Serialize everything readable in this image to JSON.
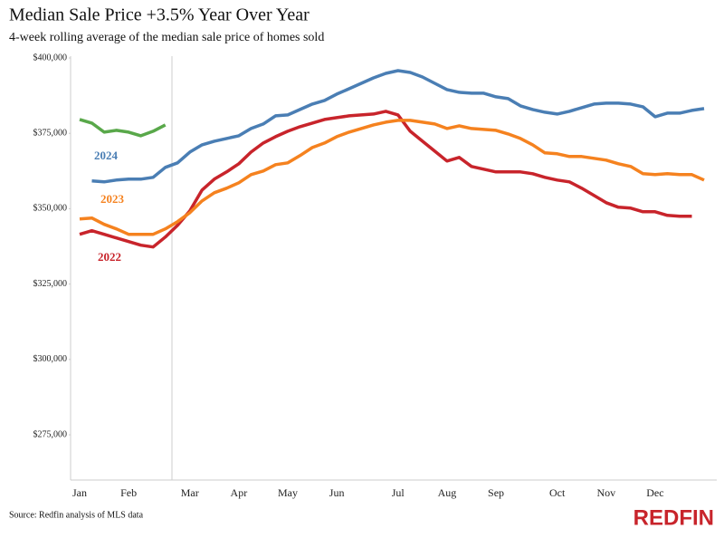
{
  "chart_data": {
    "type": "line",
    "title": "Median Sale Price +3.5% Year Over Year",
    "subtitle": "4-week rolling average of the median sale price of homes sold",
    "source": "Source: Redfin analysis of MLS data",
    "brand": "REDFIN",
    "categories": [
      "Jan",
      null,
      null,
      null,
      "Feb",
      null,
      null,
      null,
      null,
      "Mar",
      null,
      null,
      null,
      "Apr",
      null,
      null,
      null,
      "May",
      null,
      null,
      null,
      "Jun",
      null,
      null,
      null,
      null,
      "Jul",
      null,
      null,
      null,
      "Aug",
      null,
      null,
      null,
      "Sep",
      null,
      null,
      null,
      null,
      "Oct",
      null,
      null,
      null,
      "Nov",
      null,
      null,
      null,
      "Dec",
      null,
      null,
      null,
      null
    ],
    "ylim": [
      260000,
      400000
    ],
    "yticks": [
      {
        "value": 275000,
        "label": "$275,000"
      },
      {
        "value": 300000,
        "label": "$300,000"
      },
      {
        "value": 325000,
        "label": "$325,000"
      },
      {
        "value": 350000,
        "label": "$350,000"
      },
      {
        "value": 375000,
        "label": "$375,000"
      },
      {
        "value": 400000,
        "label": "$400,000"
      }
    ],
    "series": [
      {
        "name": "2022",
        "color": "#c8242b",
        "values": [
          341500,
          342700,
          341500,
          340300,
          339100,
          337900,
          337300,
          340600,
          344500,
          349300,
          356200,
          359800,
          362200,
          364900,
          368800,
          371800,
          373900,
          375700,
          377200,
          378400,
          379600,
          380200,
          380800,
          381100,
          381400,
          382300,
          381100,
          375700,
          372400,
          369100,
          365800,
          367000,
          364000,
          363100,
          362200,
          362200,
          362200,
          361600,
          360400,
          359500,
          358900,
          356800,
          354400,
          352000,
          350500,
          350200,
          349000,
          349000,
          347800,
          347500,
          347500,
          null
        ]
      },
      {
        "name": "2023",
        "color": "#f5821f",
        "values": [
          346600,
          346900,
          344800,
          343300,
          341500,
          341500,
          341500,
          343300,
          345700,
          348700,
          352600,
          355300,
          356800,
          358600,
          361300,
          362500,
          364600,
          365200,
          367600,
          370300,
          371800,
          373900,
          375400,
          376600,
          377800,
          378700,
          379300,
          379300,
          378700,
          378100,
          376600,
          377500,
          376600,
          376300,
          376000,
          374800,
          373300,
          371200,
          368500,
          368200,
          367300,
          367300,
          366700,
          366100,
          364900,
          364000,
          361600,
          361300,
          361600,
          361300,
          361300,
          359500
        ]
      },
      {
        "name": "2024",
        "color": "#4a7eb4",
        "values": [
          null,
          359200,
          358900,
          359500,
          359800,
          359800,
          360400,
          363700,
          365200,
          368800,
          371200,
          372400,
          373300,
          374200,
          376600,
          378100,
          380800,
          381100,
          382900,
          384700,
          385900,
          388000,
          389800,
          391600,
          393400,
          394900,
          395800,
          395200,
          393700,
          391600,
          389500,
          388600,
          388300,
          388300,
          387100,
          386500,
          384100,
          382900,
          382000,
          381400,
          382300,
          383500,
          384700,
          385000,
          385000,
          384700,
          383800,
          380500,
          381700,
          381700,
          382600,
          383200
        ]
      },
      {
        "color": "#59a84a",
        "values": [
          379600,
          378400,
          375400,
          376000,
          375400,
          374200,
          375700,
          377800,
          null,
          null,
          null,
          null,
          null,
          null,
          null,
          null,
          null,
          null,
          null,
          null,
          null,
          null,
          null,
          null,
          null,
          null,
          null,
          null,
          null,
          null,
          null,
          null,
          null,
          null,
          null,
          null,
          null,
          null,
          null,
          null,
          null,
          null,
          null,
          null,
          null,
          null,
          null,
          null,
          null,
          null,
          null,
          null
        ]
      }
    ]
  }
}
